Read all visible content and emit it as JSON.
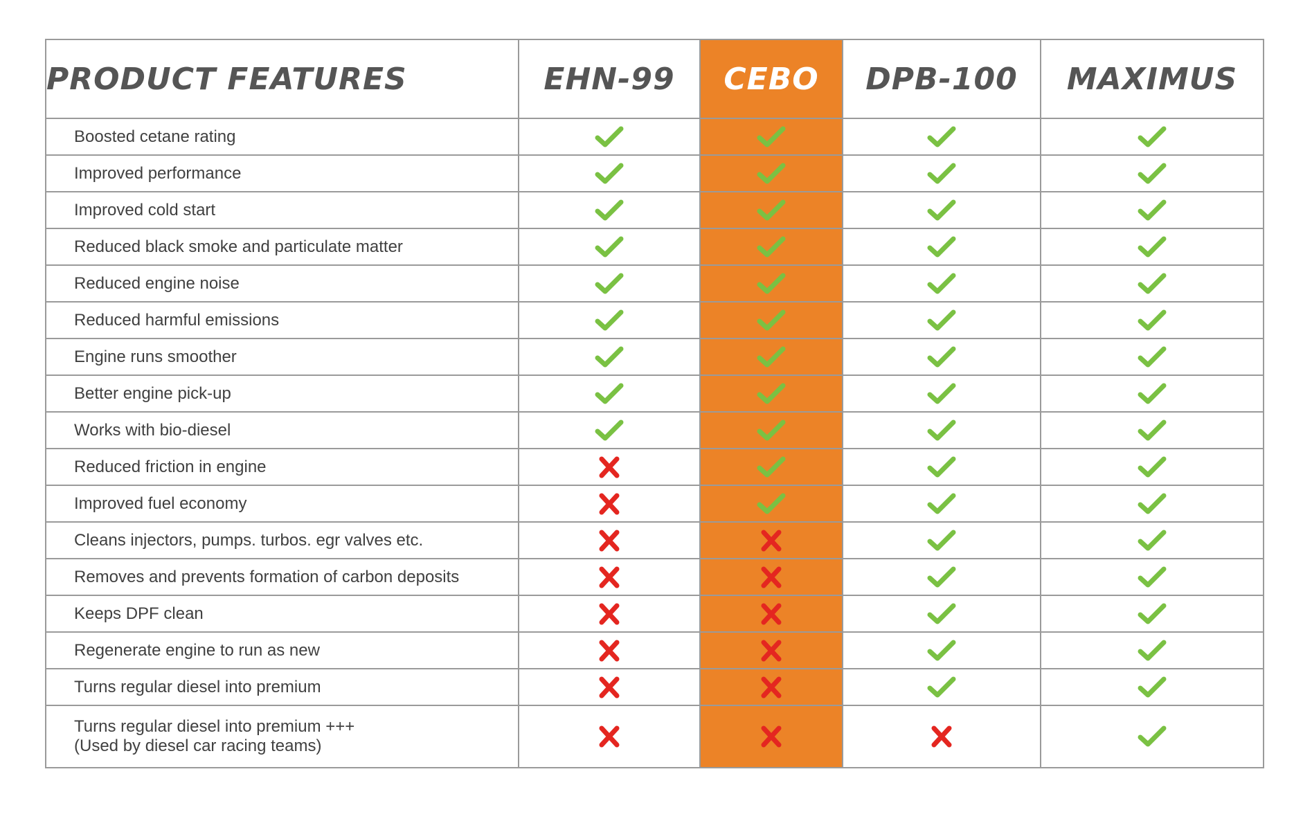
{
  "table": {
    "header": {
      "feature_label": "PRODUCT FEATURES",
      "products": [
        "EHN-99",
        "CEBO",
        "DPB-100",
        "MAXIMUS"
      ],
      "highlighted_product": "CEBO"
    },
    "colors": {
      "highlight": "#ec8327",
      "check": "#7ac143",
      "cross": "#e42620",
      "header_text": "#555555",
      "body_text": "#404040"
    },
    "rows": [
      {
        "feature": "Boosted cetane rating",
        "marks": [
          "check",
          "check",
          "check",
          "check"
        ]
      },
      {
        "feature": "Improved performance",
        "marks": [
          "check",
          "check",
          "check",
          "check"
        ]
      },
      {
        "feature": "Improved cold start",
        "marks": [
          "check",
          "check",
          "check",
          "check"
        ]
      },
      {
        "feature": "Reduced black smoke and particulate matter",
        "marks": [
          "check",
          "check",
          "check",
          "check"
        ]
      },
      {
        "feature": "Reduced engine noise",
        "marks": [
          "check",
          "check",
          "check",
          "check"
        ]
      },
      {
        "feature": "Reduced harmful emissions",
        "marks": [
          "check",
          "check",
          "check",
          "check"
        ]
      },
      {
        "feature": "Engine runs smoother",
        "marks": [
          "check",
          "check",
          "check",
          "check"
        ]
      },
      {
        "feature": "Better engine pick-up",
        "marks": [
          "check",
          "check",
          "check",
          "check"
        ]
      },
      {
        "feature": "Works with bio-diesel",
        "marks": [
          "check",
          "check",
          "check",
          "check"
        ]
      },
      {
        "feature": "Reduced friction in engine",
        "marks": [
          "cross",
          "check",
          "check",
          "check"
        ]
      },
      {
        "feature": "Improved fuel economy",
        "marks": [
          "cross",
          "check",
          "check",
          "check"
        ]
      },
      {
        "feature": "Cleans injectors, pumps. turbos. egr valves etc.",
        "marks": [
          "cross",
          "cross",
          "check",
          "check"
        ]
      },
      {
        "feature": "Removes and prevents formation of carbon deposits",
        "marks": [
          "cross",
          "cross",
          "check",
          "check"
        ]
      },
      {
        "feature": "Keeps DPF clean",
        "marks": [
          "cross",
          "cross",
          "check",
          "check"
        ]
      },
      {
        "feature": "Regenerate engine to run as new",
        "marks": [
          "cross",
          "cross",
          "check",
          "check"
        ]
      },
      {
        "feature": "Turns regular diesel into premium",
        "marks": [
          "cross",
          "cross",
          "check",
          "check"
        ]
      },
      {
        "feature": "Turns regular diesel into premium +++",
        "feature_line2": "(Used by diesel car racing teams)",
        "marks": [
          "cross",
          "cross",
          "cross",
          "check"
        ]
      }
    ]
  }
}
